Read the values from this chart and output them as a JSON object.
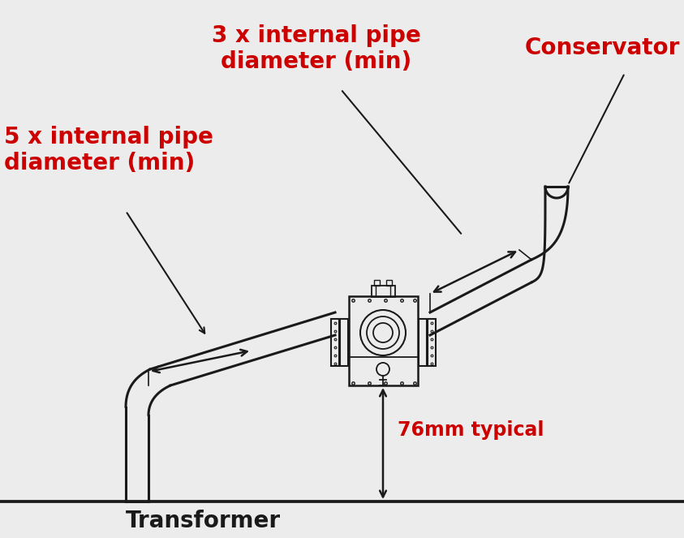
{
  "bg_color": "#ececec",
  "line_color": "#1a1a1a",
  "red_color": "#cc0000",
  "text_color": "#1a1a1a",
  "labels": {
    "conservator": "Conservator",
    "three_x": "3 x internal pipe\ndiameter (min)",
    "five_x": "5 x internal pipe\ndiameter (min)",
    "seventy_six": "76mm typical",
    "transformer": "Transformer"
  },
  "lw_pipe": 2.2,
  "lw_relay": 1.8,
  "lw_arrow": 1.8,
  "figw": 8.43,
  "figh": 6.63,
  "dpi": 100
}
